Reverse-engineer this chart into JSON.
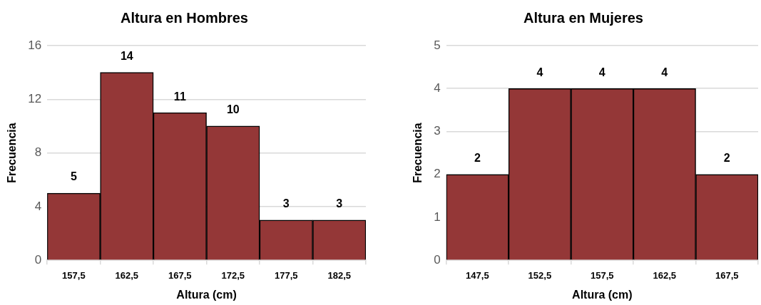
{
  "chart_data": [
    {
      "type": "bar",
      "title": "Altura en Hombres",
      "xlabel": "Altura (cm)",
      "ylabel": "Frecuencia",
      "categories": [
        "157,5",
        "162,5",
        "167,5",
        "172,5",
        "177,5",
        "182,5"
      ],
      "values": [
        5,
        14,
        11,
        10,
        3,
        3
      ],
      "color": "#943737",
      "ylim": [
        0,
        16
      ],
      "yticks": [
        0,
        4,
        8,
        12,
        16
      ],
      "grid": "y",
      "data_labels": true
    },
    {
      "type": "bar",
      "title": "Altura en Mujeres",
      "xlabel": "Altura (cm)",
      "ylabel": "Frecuencia",
      "categories": [
        "147,5",
        "152,5",
        "157,5",
        "162,5",
        "167,5"
      ],
      "values": [
        2,
        4,
        4,
        4,
        2
      ],
      "color": "#943737",
      "ylim": [
        0,
        5
      ],
      "yticks": [
        0,
        1,
        2,
        3,
        4,
        5
      ],
      "grid": "y",
      "data_labels": true
    }
  ]
}
